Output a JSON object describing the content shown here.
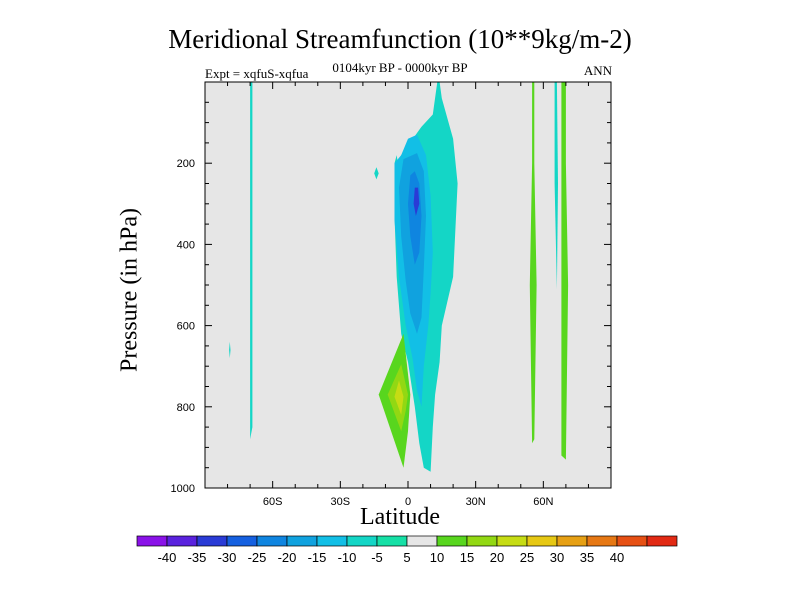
{
  "chart_data": {
    "type": "contour",
    "title": "Meridional Streamfunction (10**9kg/m-2)",
    "subtitle": "0104kyr BP - 0000kyr BP",
    "left_annotation": "Expt = xqfuS-xqfua",
    "right_annotation": "ANN",
    "xlabel": "Latitude",
    "ylabel": "Pressure (in hPa)",
    "xlim": [
      -90,
      90
    ],
    "ylim": [
      1000,
      0
    ],
    "x_ticks": [
      {
        "value": -60,
        "label": "60S"
      },
      {
        "value": -30,
        "label": "30S"
      },
      {
        "value": 0,
        "label": "0"
      },
      {
        "value": 30,
        "label": "30N"
      },
      {
        "value": 60,
        "label": "60N"
      }
    ],
    "y_ticks": [
      {
        "value": 200,
        "label": "200"
      },
      {
        "value": 400,
        "label": "400"
      },
      {
        "value": 600,
        "label": "600"
      },
      {
        "value": 800,
        "label": "800"
      },
      {
        "value": 1000,
        "label": "1000"
      }
    ],
    "background_color": "#e6e6e6",
    "colorbar": {
      "labels": [
        "-40",
        "-35",
        "-30",
        "-25",
        "-20",
        "-15",
        "-10",
        "-5",
        "5",
        "10",
        "15",
        "20",
        "25",
        "30",
        "35",
        "40"
      ],
      "colors": [
        "#8a12e8",
        "#5a22de",
        "#2a3bd6",
        "#1560e0",
        "#0f85e0",
        "#10a2df",
        "#12bfe6",
        "#14d6c6",
        "#16e0a6",
        "#e6e6e6",
        "#58d61e",
        "#92d813",
        "#c6dc14",
        "#e6c814",
        "#e6a014",
        "#e67814",
        "#e65014",
        "#e22a14"
      ]
    },
    "regions": [
      {
        "name": "negative-cell-outer",
        "value": -5,
        "color": "#14d6c6",
        "points": [
          [
            -4,
            220
          ],
          [
            -3,
            180
          ],
          [
            6,
            110
          ],
          [
            11,
            80
          ],
          [
            13,
            0
          ],
          [
            14,
            0
          ],
          [
            15,
            40
          ],
          [
            20,
            140
          ],
          [
            22,
            250
          ],
          [
            20,
            480
          ],
          [
            15,
            600
          ],
          [
            14,
            690
          ],
          [
            12,
            770
          ],
          [
            11,
            850
          ],
          [
            10,
            960
          ],
          [
            7,
            950
          ],
          [
            5,
            890
          ],
          [
            3,
            800
          ],
          [
            0,
            690
          ],
          [
            -3,
            620
          ],
          [
            -5,
            480
          ],
          [
            -6,
            330
          ],
          [
            -6,
            200
          ],
          [
            -5,
            180
          ]
        ]
      },
      {
        "name": "negative-cell-10",
        "value": -10,
        "color": "#12bfe6",
        "points": [
          [
            -3,
            180
          ],
          [
            -6,
            200
          ],
          [
            -6,
            340
          ],
          [
            -4,
            480
          ],
          [
            -1,
            600
          ],
          [
            2,
            680
          ],
          [
            4,
            760
          ],
          [
            6,
            800
          ],
          [
            7,
            700
          ],
          [
            9,
            600
          ],
          [
            10,
            520
          ],
          [
            11,
            420
          ],
          [
            10,
            280
          ],
          [
            8,
            180
          ],
          [
            4,
            130
          ],
          [
            0,
            140
          ]
        ]
      },
      {
        "name": "negative-cell-15",
        "value": -15,
        "color": "#10a2df",
        "points": [
          [
            -2,
            190
          ],
          [
            -4,
            260
          ],
          [
            -3,
            380
          ],
          [
            -1,
            490
          ],
          [
            1,
            570
          ],
          [
            4,
            620
          ],
          [
            6,
            580
          ],
          [
            7,
            460
          ],
          [
            8,
            330
          ],
          [
            7,
            220
          ],
          [
            4,
            175
          ]
        ]
      },
      {
        "name": "negative-cell-20",
        "value": -20,
        "color": "#0f85e0",
        "points": [
          [
            1,
            230
          ],
          [
            0,
            300
          ],
          [
            1,
            380
          ],
          [
            3,
            450
          ],
          [
            5,
            420
          ],
          [
            6,
            330
          ],
          [
            5,
            250
          ],
          [
            3,
            220
          ]
        ]
      },
      {
        "name": "negative-core-35",
        "value": -35,
        "color": "#2a3bd6",
        "points": [
          [
            3,
            260
          ],
          [
            2.5,
            300
          ],
          [
            3.5,
            330
          ],
          [
            5,
            300
          ],
          [
            4.5,
            260
          ]
        ]
      },
      {
        "name": "positive-cell-outer",
        "value": 5,
        "color": "#58d61e",
        "points": [
          [
            -2,
            620
          ],
          [
            -13,
            770
          ],
          [
            -2,
            950
          ],
          [
            0,
            860
          ],
          [
            1,
            770
          ]
        ]
      },
      {
        "name": "positive-cell-10",
        "value": 10,
        "color": "#92d813",
        "points": [
          [
            -3,
            695
          ],
          [
            -9,
            770
          ],
          [
            -3,
            860
          ],
          [
            -1,
            810
          ],
          [
            0,
            770
          ]
        ]
      },
      {
        "name": "positive-core-15",
        "value": 15,
        "color": "#c6dc14",
        "points": [
          [
            -4,
            735
          ],
          [
            -6,
            775
          ],
          [
            -3,
            820
          ],
          [
            -2,
            775
          ]
        ]
      },
      {
        "name": "positive-band-north-a",
        "value": 5,
        "color": "#58d61e",
        "points": [
          [
            55,
            0
          ],
          [
            55,
            200
          ],
          [
            54,
            500
          ],
          [
            55,
            890
          ],
          [
            56,
            880
          ],
          [
            57,
            500
          ],
          [
            56,
            200
          ],
          [
            56,
            0
          ]
        ]
      },
      {
        "name": "positive-band-north-b",
        "value": 5,
        "color": "#58d61e",
        "points": [
          [
            68,
            0
          ],
          [
            68,
            250
          ],
          [
            68,
            500
          ],
          [
            68,
            920
          ],
          [
            70,
            930
          ],
          [
            71,
            500
          ],
          [
            70,
            200
          ],
          [
            70,
            0
          ]
        ]
      },
      {
        "name": "negative-sliver-north",
        "value": -5,
        "color": "#14d6c6",
        "points": [
          [
            65,
            0
          ],
          [
            65,
            250
          ],
          [
            66,
            510
          ],
          [
            66.5,
            250
          ],
          [
            66,
            0
          ]
        ]
      },
      {
        "name": "negative-sliver-south",
        "value": -5,
        "color": "#14d6c6",
        "points": [
          [
            -70,
            0
          ],
          [
            -70,
            600
          ],
          [
            -70,
            880
          ],
          [
            -69,
            850
          ],
          [
            -69,
            400
          ],
          [
            -69,
            0
          ]
        ]
      },
      {
        "name": "negative-speck-a",
        "value": -5,
        "color": "#14d6c6",
        "points": [
          [
            -14,
            210
          ],
          [
            -15,
            225
          ],
          [
            -14,
            240
          ],
          [
            -13,
            225
          ]
        ]
      },
      {
        "name": "negative-speck-b",
        "value": -5,
        "color": "#14d6c6",
        "points": [
          [
            -79,
            640
          ],
          [
            -79.3,
            660
          ],
          [
            -79,
            680
          ],
          [
            -78.7,
            660
          ]
        ]
      }
    ]
  }
}
